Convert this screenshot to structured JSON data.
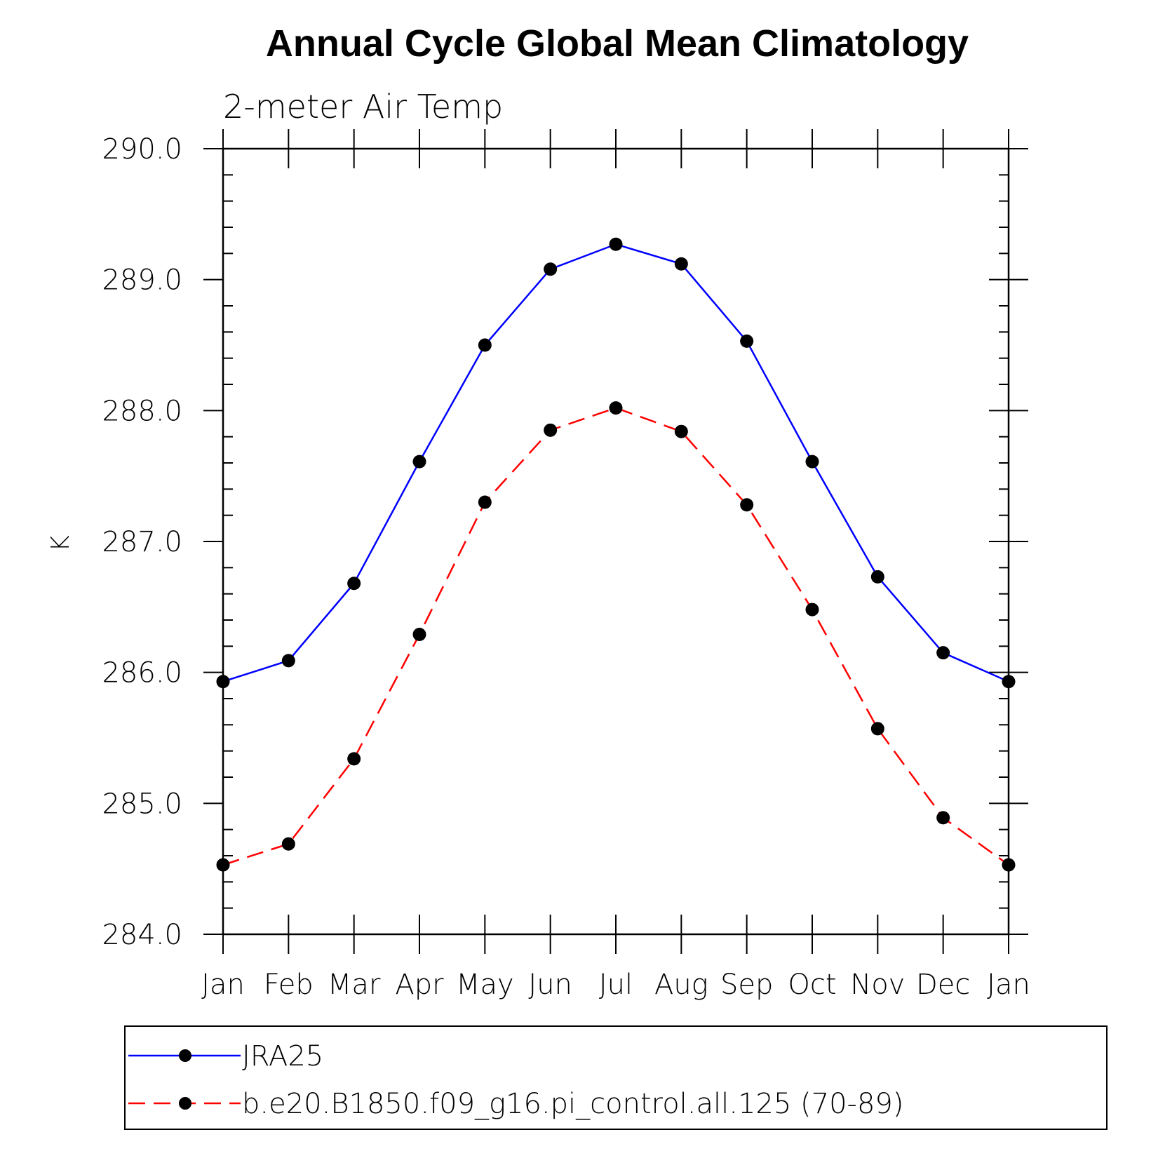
{
  "chart_data": {
    "type": "line",
    "title": "Annual Cycle Global Mean Climatology",
    "subtitle": "2-meter Air Temp",
    "ylabel": "K",
    "xlabel": "",
    "categories": [
      "Jan",
      "Feb",
      "Mar",
      "Apr",
      "May",
      "Jun",
      "Jul",
      "Aug",
      "Sep",
      "Oct",
      "Nov",
      "Dec",
      "Jan"
    ],
    "ylim": [
      284.0,
      290.0
    ],
    "yticks": [
      "284.0",
      "285.0",
      "286.0",
      "287.0",
      "288.0",
      "289.0",
      "290.0"
    ],
    "grid": false,
    "legend_position": "bottom",
    "series": [
      {
        "name": "JRA25",
        "color": "#0000ff",
        "dash": "solid",
        "marker": "filled-circle",
        "values": [
          285.93,
          286.09,
          286.68,
          287.61,
          288.5,
          289.08,
          289.27,
          289.12,
          288.53,
          287.61,
          286.73,
          286.15,
          285.93
        ]
      },
      {
        "name": "b.e20.B1850.f09_g16.pi_control.all.125 (70-89)",
        "color": "#ff0000",
        "dash": "dashed",
        "marker": "filled-circle",
        "values": [
          284.53,
          284.69,
          285.34,
          286.29,
          287.3,
          287.85,
          288.02,
          287.84,
          287.28,
          286.48,
          285.57,
          284.89,
          284.53
        ]
      }
    ]
  }
}
